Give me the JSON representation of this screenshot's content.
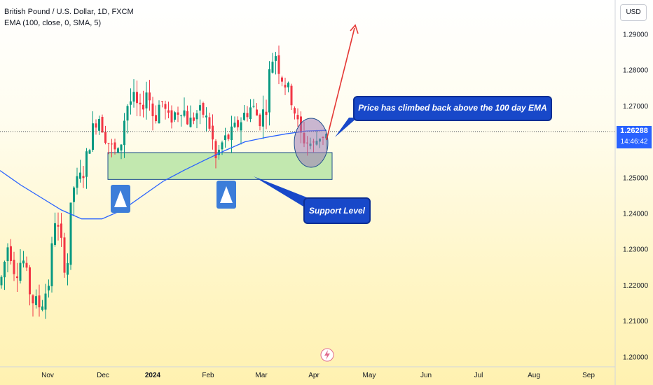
{
  "header": {
    "symbol_line": "British Pound / U.S. Dollar, 1D, FXCM",
    "indicator_line": "EMA (100, close, 0, SMA, 5)"
  },
  "axis": {
    "currency": "USD",
    "last_price": "1.26288",
    "countdown": "14:46:42"
  },
  "annotations": {
    "ema_callout": "Price has climbed back above the 100 day EMA",
    "support_callout": "Support Level"
  },
  "colors": {
    "up": "#089981",
    "down": "#f23645",
    "ema": "#2962ff",
    "support_fill": "#b7e4a6",
    "callout": "#1848c9",
    "arrow": "#e53935",
    "circle": "#9c7bb8"
  },
  "icons": [
    "up-triangle-icon",
    "up-triangle-icon",
    "lightning-icon"
  ],
  "chart_data": {
    "type": "candlestick",
    "title": "British Pound / U.S. Dollar, 1D, FXCM",
    "ylim": [
      1.1975,
      1.3025
    ],
    "y_ticks": [
      "1.29000",
      "1.28000",
      "1.27000",
      "1.26000",
      "1.25000",
      "1.24000",
      "1.23000",
      "1.22000",
      "1.21000",
      "1.20000"
    ],
    "x_ticks": [
      "Nov",
      "Dec",
      "2024",
      "Feb",
      "Mar",
      "Apr",
      "May",
      "Jun",
      "Jul",
      "Aug",
      "Sep"
    ],
    "last_price": 1.26288,
    "support_zone": [
      1.2495,
      1.257
    ],
    "ema_line": {
      "name": "EMA (100, close, 0, SMA, 5)",
      "values": [
        1.252,
        1.248,
        1.2445,
        1.241,
        1.2385,
        1.2385,
        1.241,
        1.245,
        1.249,
        1.252,
        1.2548,
        1.2575,
        1.26,
        1.2612,
        1.2622,
        1.263,
        1.2632
      ]
    },
    "candles_note": "approximate daily OHLC read from the image"
  }
}
